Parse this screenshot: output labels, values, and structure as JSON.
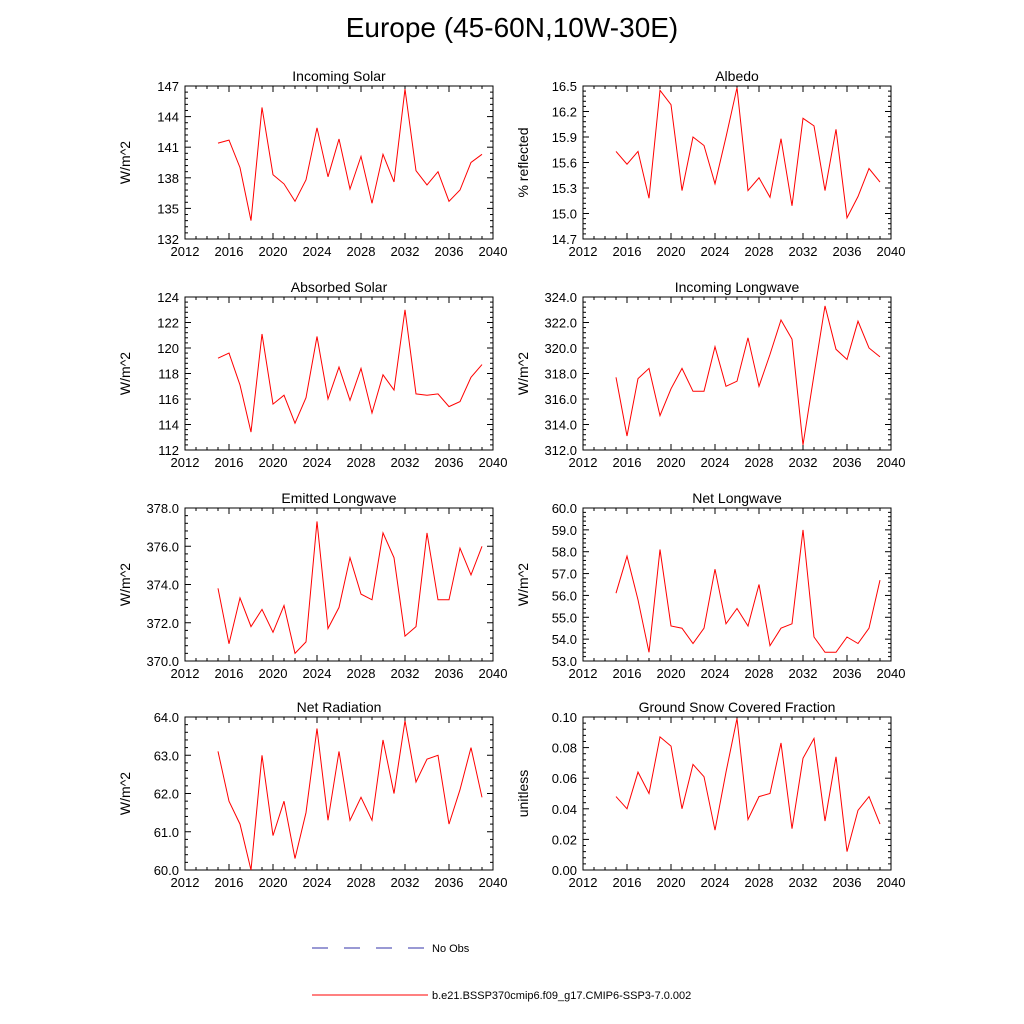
{
  "title": "Europe (45-60N,10W-30E)",
  "legend": {
    "obs_label": "No Obs",
    "obs_color": "#3333aa",
    "model_label": "b.e21.BSSP370cmip6.f09_g17.CMIP6-SSP3-7.0.002",
    "model_color": "#ff0000"
  },
  "chart_data": [
    {
      "type": "line",
      "title": "Incoming Solar",
      "ylabel": "W/m^2",
      "xlim": [
        2012,
        2040
      ],
      "xticks": [
        "2012",
        "2016",
        "2020",
        "2024",
        "2028",
        "2032",
        "2036",
        "2040"
      ],
      "ylim": [
        132,
        147
      ],
      "yticks": [
        "132",
        "135",
        "138",
        "141",
        "144",
        "147"
      ],
      "x": [
        2015,
        2016,
        2017,
        2018,
        2019,
        2020,
        2021,
        2022,
        2023,
        2024,
        2025,
        2026,
        2027,
        2028,
        2029,
        2030,
        2031,
        2032,
        2033,
        2034,
        2035,
        2036,
        2037,
        2038,
        2039
      ],
      "series": [
        {
          "values": [
            141.4,
            141.7,
            139.0,
            133.8,
            144.9,
            138.3,
            137.4,
            135.7,
            137.8,
            142.9,
            138.1,
            141.8,
            136.9,
            140.1,
            135.5,
            140.3,
            137.6,
            146.7,
            138.7,
            137.3,
            138.6,
            135.7,
            136.8,
            139.5,
            140.3
          ]
        }
      ]
    },
    {
      "type": "line",
      "title": "Albedo",
      "ylabel": "% reflected",
      "xlim": [
        2012,
        2040
      ],
      "xticks": [
        "2012",
        "2016",
        "2020",
        "2024",
        "2028",
        "2032",
        "2036",
        "2040"
      ],
      "ylim": [
        14.7,
        16.5
      ],
      "yticks": [
        "14.7",
        "15.0",
        "15.3",
        "15.6",
        "15.9",
        "16.2",
        "16.5"
      ],
      "x": [
        2015,
        2016,
        2017,
        2018,
        2019,
        2020,
        2021,
        2022,
        2023,
        2024,
        2025,
        2026,
        2027,
        2028,
        2029,
        2030,
        2031,
        2032,
        2033,
        2034,
        2035,
        2036,
        2037,
        2038,
        2039
      ],
      "series": [
        {
          "values": [
            15.73,
            15.58,
            15.73,
            15.18,
            16.45,
            16.28,
            15.27,
            15.9,
            15.8,
            15.35,
            15.9,
            16.48,
            15.27,
            15.42,
            15.19,
            15.88,
            15.09,
            16.12,
            16.03,
            15.27,
            15.99,
            14.95,
            15.2,
            15.53,
            15.37
          ]
        }
      ]
    },
    {
      "type": "line",
      "title": "Absorbed Solar",
      "ylabel": "W/m^2",
      "xlim": [
        2012,
        2040
      ],
      "xticks": [
        "2012",
        "2016",
        "2020",
        "2024",
        "2028",
        "2032",
        "2036",
        "2040"
      ],
      "ylim": [
        112,
        124
      ],
      "yticks": [
        "112",
        "114",
        "116",
        "118",
        "120",
        "122",
        "124"
      ],
      "x": [
        2015,
        2016,
        2017,
        2018,
        2019,
        2020,
        2021,
        2022,
        2023,
        2024,
        2025,
        2026,
        2027,
        2028,
        2029,
        2030,
        2031,
        2032,
        2033,
        2034,
        2035,
        2036,
        2037,
        2038,
        2039
      ],
      "series": [
        {
          "values": [
            119.2,
            119.6,
            117.1,
            113.4,
            121.1,
            115.6,
            116.3,
            114.1,
            116.1,
            120.9,
            116.0,
            118.5,
            115.9,
            118.4,
            114.9,
            117.9,
            116.7,
            123.0,
            116.4,
            116.3,
            116.4,
            115.4,
            115.8,
            117.7,
            118.7
          ]
        }
      ]
    },
    {
      "type": "line",
      "title": "Incoming Longwave",
      "ylabel": "W/m^2",
      "xlim": [
        2012,
        2040
      ],
      "xticks": [
        "2012",
        "2016",
        "2020",
        "2024",
        "2028",
        "2032",
        "2036",
        "2040"
      ],
      "ylim": [
        312.0,
        324.0
      ],
      "yticks": [
        "312.0",
        "314.0",
        "316.0",
        "318.0",
        "320.0",
        "322.0",
        "324.0"
      ],
      "x": [
        2015,
        2016,
        2017,
        2018,
        2019,
        2020,
        2021,
        2022,
        2023,
        2024,
        2025,
        2026,
        2027,
        2028,
        2029,
        2030,
        2031,
        2032,
        2033,
        2034,
        2035,
        2036,
        2037,
        2038,
        2039
      ],
      "series": [
        {
          "values": [
            317.7,
            313.1,
            317.6,
            318.4,
            314.7,
            316.8,
            318.4,
            316.6,
            316.6,
            320.1,
            317.0,
            317.4,
            320.8,
            317.0,
            319.5,
            322.2,
            320.7,
            312.4,
            317.9,
            323.3,
            319.9,
            319.1,
            322.1,
            320.0,
            319.3
          ]
        }
      ]
    },
    {
      "type": "line",
      "title": "Emitted Longwave",
      "ylabel": "W/m^2",
      "xlim": [
        2012,
        2040
      ],
      "xticks": [
        "2012",
        "2016",
        "2020",
        "2024",
        "2028",
        "2032",
        "2036",
        "2040"
      ],
      "ylim": [
        370.0,
        378.0
      ],
      "yticks": [
        "370.0",
        "372.0",
        "374.0",
        "376.0",
        "378.0"
      ],
      "x": [
        2015,
        2016,
        2017,
        2018,
        2019,
        2020,
        2021,
        2022,
        2023,
        2024,
        2025,
        2026,
        2027,
        2028,
        2029,
        2030,
        2031,
        2032,
        2033,
        2034,
        2035,
        2036,
        2037,
        2038,
        2039
      ],
      "series": [
        {
          "values": [
            373.8,
            370.9,
            373.3,
            371.8,
            372.7,
            371.5,
            372.9,
            370.4,
            371.0,
            377.3,
            371.7,
            372.8,
            375.4,
            373.5,
            373.2,
            376.7,
            375.4,
            371.3,
            371.8,
            376.7,
            373.2,
            373.2,
            375.9,
            374.5,
            376.0
          ]
        }
      ]
    },
    {
      "type": "line",
      "title": "Net Longwave",
      "ylabel": "W/m^2",
      "xlim": [
        2012,
        2040
      ],
      "xticks": [
        "2012",
        "2016",
        "2020",
        "2024",
        "2028",
        "2032",
        "2036",
        "2040"
      ],
      "ylim": [
        53.0,
        60.0
      ],
      "yticks": [
        "53.0",
        "54.0",
        "55.0",
        "56.0",
        "57.0",
        "58.0",
        "59.0",
        "60.0"
      ],
      "x": [
        2015,
        2016,
        2017,
        2018,
        2019,
        2020,
        2021,
        2022,
        2023,
        2024,
        2025,
        2026,
        2027,
        2028,
        2029,
        2030,
        2031,
        2032,
        2033,
        2034,
        2035,
        2036,
        2037,
        2038,
        2039
      ],
      "series": [
        {
          "values": [
            56.1,
            57.8,
            55.8,
            53.4,
            58.1,
            54.6,
            54.5,
            53.8,
            54.5,
            57.2,
            54.7,
            55.4,
            54.6,
            56.5,
            53.7,
            54.5,
            54.7,
            59.0,
            54.1,
            53.4,
            53.4,
            54.1,
            53.8,
            54.5,
            56.7
          ]
        }
      ]
    },
    {
      "type": "line",
      "title": "Net Radiation",
      "ylabel": "W/m^2",
      "xlim": [
        2012,
        2040
      ],
      "xticks": [
        "2012",
        "2016",
        "2020",
        "2024",
        "2028",
        "2032",
        "2036",
        "2040"
      ],
      "ylim": [
        60.0,
        64.0
      ],
      "yticks": [
        "60.0",
        "61.0",
        "62.0",
        "63.0",
        "64.0"
      ],
      "x": [
        2015,
        2016,
        2017,
        2018,
        2019,
        2020,
        2021,
        2022,
        2023,
        2024,
        2025,
        2026,
        2027,
        2028,
        2029,
        2030,
        2031,
        2032,
        2033,
        2034,
        2035,
        2036,
        2037,
        2038,
        2039
      ],
      "series": [
        {
          "values": [
            63.1,
            61.8,
            61.2,
            60.0,
            63.0,
            60.9,
            61.8,
            60.3,
            61.5,
            63.7,
            61.3,
            63.1,
            61.3,
            61.9,
            61.3,
            63.4,
            62.0,
            63.9,
            62.3,
            62.9,
            63.0,
            61.2,
            62.1,
            63.2,
            61.9
          ]
        }
      ]
    },
    {
      "type": "line",
      "title": "Ground Snow Covered Fraction",
      "ylabel": "unitless",
      "xlim": [
        2012,
        2040
      ],
      "xticks": [
        "2012",
        "2016",
        "2020",
        "2024",
        "2028",
        "2032",
        "2036",
        "2040"
      ],
      "ylim": [
        0.0,
        0.1
      ],
      "yticks": [
        "0.00",
        "0.02",
        "0.04",
        "0.06",
        "0.08",
        "0.10"
      ],
      "x": [
        2015,
        2016,
        2017,
        2018,
        2019,
        2020,
        2021,
        2022,
        2023,
        2024,
        2025,
        2026,
        2027,
        2028,
        2029,
        2030,
        2031,
        2032,
        2033,
        2034,
        2035,
        2036,
        2037,
        2038,
        2039
      ],
      "series": [
        {
          "values": [
            0.048,
            0.04,
            0.064,
            0.05,
            0.087,
            0.081,
            0.04,
            0.069,
            0.061,
            0.026,
            0.064,
            0.099,
            0.033,
            0.048,
            0.05,
            0.083,
            0.027,
            0.073,
            0.086,
            0.032,
            0.074,
            0.012,
            0.039,
            0.048,
            0.03
          ]
        }
      ]
    }
  ]
}
